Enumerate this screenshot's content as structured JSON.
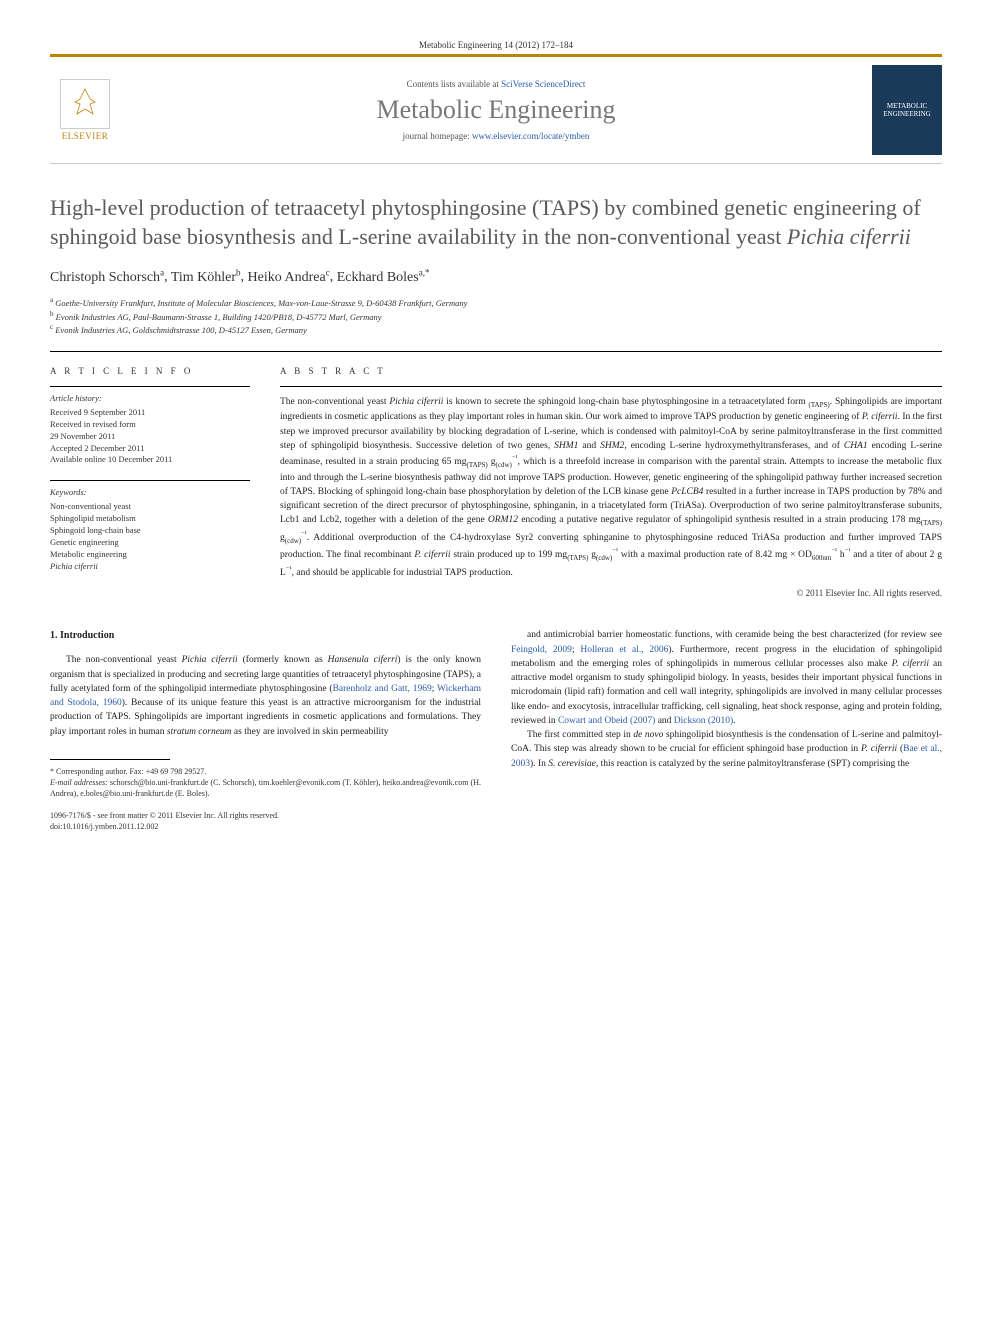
{
  "citation": "Metabolic Engineering 14 (2012) 172–184",
  "header": {
    "contents_prefix": "Contents lists available at ",
    "contents_link": "SciVerse ScienceDirect",
    "journal": "Metabolic Engineering",
    "homepage_prefix": "journal homepage: ",
    "homepage_link": "www.elsevier.com/locate/ymben",
    "publisher": "ELSEVIER",
    "cover_text": "METABOLIC ENGINEERING"
  },
  "title": {
    "main": "High-level production of tetraacetyl phytosphingosine (TAPS) by combined genetic engineering of sphingoid base biosynthesis and L-serine availability in the non-conventional yeast ",
    "species": "Pichia ciferrii"
  },
  "authors": [
    {
      "name": "Christoph Schorsch",
      "mark": "a"
    },
    {
      "name": "Tim Köhler",
      "mark": "b"
    },
    {
      "name": "Heiko Andrea",
      "mark": "c"
    },
    {
      "name": "Eckhard Boles",
      "mark": "a,*"
    }
  ],
  "affiliations": [
    {
      "mark": "a",
      "text": "Goethe-University Frankfurt, Institute of Molecular Biosciences, Max-von-Laue-Strasse 9, D-60438 Frankfurt, Germany"
    },
    {
      "mark": "b",
      "text": "Evonik Industries AG, Paul-Baumann-Strasse 1, Building 1420/PB18, D-45772 Marl, Germany"
    },
    {
      "mark": "c",
      "text": "Evonik Industries AG, Goldschmidtstrasse 100, D-45127 Essen, Germany"
    }
  ],
  "article_info": {
    "label": "A R T I C L E  I N F O",
    "history_label": "Article history:",
    "history": [
      "Received 9 September 2011",
      "Received in revised form",
      "29 November 2011",
      "Accepted 2 December 2011",
      "Available online 10 December 2011"
    ],
    "keywords_label": "Keywords:",
    "keywords": [
      "Non-conventional yeast",
      "Sphingolipid metabolism",
      "Sphingoid long-chain base",
      "Genetic engineering",
      "Metabolic engineering",
      "Pichia ciferrii"
    ]
  },
  "abstract": {
    "label": "A B S T R A C T",
    "text": "The non-conventional yeast Pichia ciferrii is known to secrete the sphingoid long-chain base phytosphingosine in a tetraacetylated form (TAPS). Sphingolipids are important ingredients in cosmetic applications as they play important roles in human skin. Our work aimed to improve TAPS production by genetic engineering of P. ciferrii. In the first step we improved precursor availability by blocking degradation of L-serine, which is condensed with palmitoyl-CoA by serine palmitoyltransferase in the first committed step of sphingolipid biosynthesis. Successive deletion of two genes, SHM1 and SHM2, encoding L-serine hydroxymethyltransferases, and of CHA1 encoding L-serine deaminase, resulted in a strain producing 65 mg(TAPS) g(cdw)⁻¹, which is a threefold increase in comparison with the parental strain. Attempts to increase the metabolic flux into and through the L-serine biosynthesis pathway did not improve TAPS production. However, genetic engineering of the sphingolipid pathway further increased secretion of TAPS. Blocking of sphingoid long-chain base phosphorylation by deletion of the LCB kinase gene PcLCB4 resulted in a further increase in TAPS production by 78% and significant secretion of the direct precursor of phytosphingosine, sphinganin, in a triacetylated form (TriASa). Overproduction of two serine palmitoyltransferase subunits, Lcb1 and Lcb2, together with a deletion of the gene ORM12 encoding a putative negative regulator of sphingolipid synthesis resulted in a strain producing 178 mg(TAPS) g(cdw)⁻¹. Additional overproduction of the C4-hydroxylase Syr2 converting sphinganine to phytosphingosine reduced TriASa production and further improved TAPS production. The final recombinant P. ciferrii strain produced up to 199 mg(TAPS) g(cdw)⁻¹ with a maximal production rate of 8.42 mg × OD600nm⁻¹ h⁻¹ and a titer of about 2 g L⁻¹, and should be applicable for industrial TAPS production.",
    "copyright": "© 2011 Elsevier Inc. All rights reserved."
  },
  "intro": {
    "heading": "1. Introduction",
    "col1_p1": "The non-conventional yeast Pichia ciferrii (formerly known as Hansenula ciferri) is the only known organism that is specialized in producing and secreting large quantities of tetraacetyl phytosphingosine (TAPS), a fully acetylated form of the sphingolipid intermediate phytosphingosine (Barenholz and Gatt, 1969; Wickerham and Stodola, 1960). Because of its unique feature this yeast is an attractive microorganism for the industrial production of TAPS. Sphingolipids are important ingredients in cosmetic applications and formulations. They play important roles in human stratum corneum as they are involved in skin permeability",
    "col2_p1": "and antimicrobial barrier homeostatic functions, with ceramide being the best characterized (for review see Feingold, 2009; Holleran et al., 2006). Furthermore, recent progress in the elucidation of sphingolipid metabolism and the emerging roles of sphingolipids in numerous cellular processes also make P. ciferrii an attractive model organism to study sphingolipid biology. In yeasts, besides their important physical functions in microdomain (lipid raft) formation and cell wall integrity, sphingolipids are involved in many cellular processes like endo- and exocytosis, intracellular trafficking, cell signaling, heat shock response, aging and protein folding, reviewed in Cowart and Obeid (2007) and Dickson (2010).",
    "col2_p2": "The first committed step in de novo sphingolipid biosynthesis is the condensation of L-serine and palmitoyl-CoA. This step was already shown to be crucial for efficient sphingoid base production in P. ciferrii (Bae et al., 2003). In S. cerevisiae, this reaction is catalyzed by the serine palmitoyltransferase (SPT) comprising the"
  },
  "footnotes": {
    "corresponding": "* Corresponding author. Fax: +49 69 798 29527.",
    "emails_label": "E-mail addresses:",
    "emails": " schorsch@bio.uni-frankfurt.de (C. Schorsch), tim.koehler@evonik.com (T. Köhler), heiko.andrea@evonik.com (H. Andrea), e.boles@bio.uni-frankfurt.de (E. Boles)."
  },
  "bottom": {
    "line1": "1096-7176/$ - see front matter © 2011 Elsevier Inc. All rights reserved.",
    "line2": "doi:10.1016/j.ymben.2011.12.002"
  }
}
